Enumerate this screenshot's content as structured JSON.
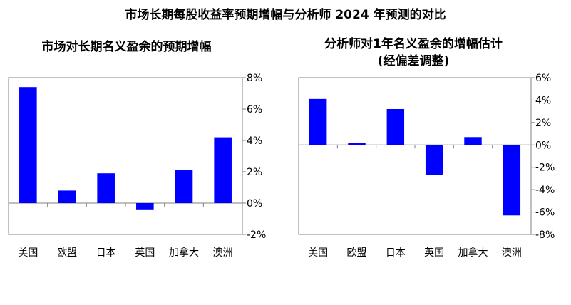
{
  "title": "市场长期每股收益率预期增幅与分析师 2024 年预测的对比",
  "colors": {
    "bar": "#0000ff",
    "axis": "#808080",
    "frame": "#808080"
  },
  "chart_data": [
    {
      "type": "bar",
      "title": "市场对长期名义盈余的预期增幅",
      "subtitle": "",
      "categories": [
        "美国",
        "欧盟",
        "日本",
        "英国",
        "加拿大",
        "澳洲"
      ],
      "values": [
        7.4,
        0.8,
        1.9,
        -0.4,
        2.1,
        4.2
      ],
      "ylim": [
        -2,
        8
      ],
      "yticks": [
        "8%",
        "6%",
        "4%",
        "2%",
        "0%",
        "-2%"
      ],
      "ytick_values": [
        8,
        6,
        4,
        2,
        0,
        -2
      ],
      "grid": false,
      "y_axis_side": "right"
    },
    {
      "type": "bar",
      "title": "分析师对1年名义盈余的增幅估计",
      "subtitle": "(经偏差调整)",
      "categories": [
        "美国",
        "欧盟",
        "日本",
        "英国",
        "加拿大",
        "澳洲"
      ],
      "values": [
        4.1,
        0.2,
        3.2,
        -2.7,
        0.7,
        -6.3
      ],
      "ylim": [
        -8,
        6
      ],
      "yticks": [
        "6%",
        "4%",
        "2%",
        "0%",
        "-2%",
        "-4%",
        "-6%",
        "-8%"
      ],
      "ytick_values": [
        6,
        4,
        2,
        0,
        -2,
        -4,
        -6,
        -8
      ],
      "grid": false,
      "y_axis_side": "right"
    }
  ]
}
